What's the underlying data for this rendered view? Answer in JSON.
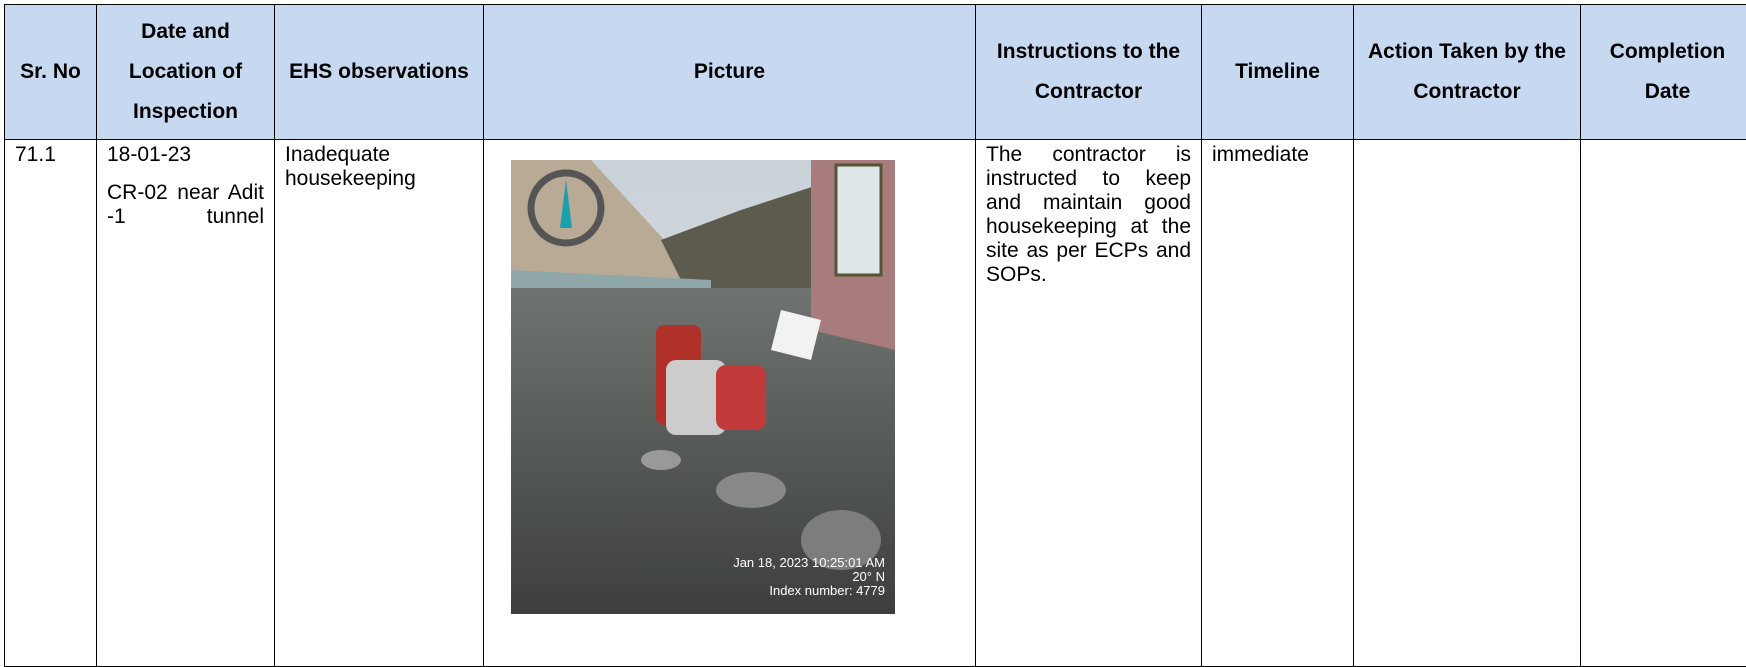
{
  "table": {
    "headers": [
      "Sr. No",
      "Date and Location of Inspection",
      "EHS observations",
      "Picture",
      "Instructions to the Contractor",
      "Timeline",
      "Action Taken by the Contractor",
      "Completion Date"
    ],
    "rows": [
      {
        "sr_no": "71.1",
        "date": "18-01-23",
        "location": "CR-02 near Adit -1 tunnel",
        "observation": "Inadequate housekeeping",
        "picture": {
          "timestamp": "Jan 18, 2023 10:25:01 AM",
          "latitude": "20° N",
          "index": "Index number: 4779"
        },
        "instructions": "The contractor is instructed to keep and maintain good housekeeping at the site as per ECPs and SOPs.",
        "timeline": "immediate",
        "action_taken": null,
        "completion_date": null
      }
    ]
  }
}
